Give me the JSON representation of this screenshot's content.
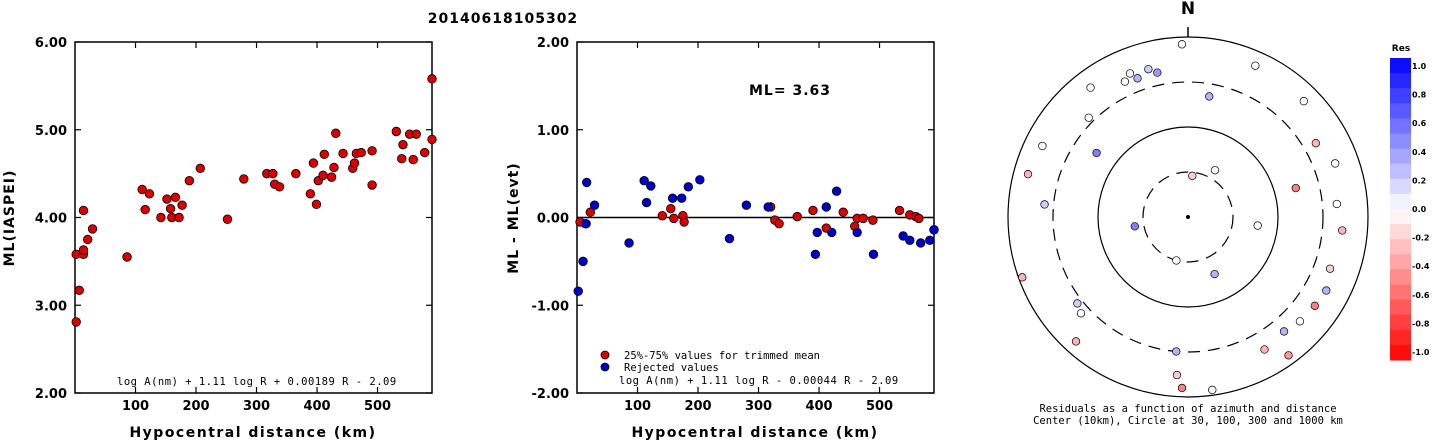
{
  "title": "20140618105302",
  "chart_data": [
    {
      "type": "scatter",
      "ylabel": "ML(IASPEI)",
      "xlabel": "Hypocentral distance (km)",
      "xlim": [
        0,
        590
      ],
      "ylim": [
        2.0,
        6.0
      ],
      "xticks": [
        "100",
        "200",
        "300",
        "400",
        "500"
      ],
      "xtick_values": [
        100,
        200,
        300,
        400,
        500
      ],
      "yticks": [
        "2.00",
        "3.00",
        "4.00",
        "5.00",
        "6.00"
      ],
      "ytick_values": [
        2,
        3,
        4,
        5,
        6
      ],
      "formula": "log A(nm) + 1.11 log R + 0.00189 R - 2.09",
      "series": [
        {
          "color": "#dd0000",
          "points": [
            [
              2,
              2.81
            ],
            [
              2,
              3.58
            ],
            [
              7,
              3.17
            ],
            [
              14,
              3.58
            ],
            [
              14,
              3.63
            ],
            [
              14,
              4.08
            ],
            [
              21,
              3.75
            ],
            [
              29,
              3.87
            ],
            [
              86,
              3.55
            ],
            [
              111,
              4.32
            ],
            [
              116,
              4.09
            ],
            [
              123,
              4.27
            ],
            [
              142,
              4.0
            ],
            [
              152,
              4.21
            ],
            [
              158,
              4.1
            ],
            [
              160,
              4.0
            ],
            [
              166,
              4.23
            ],
            [
              172,
              4.0
            ],
            [
              177,
              4.14
            ],
            [
              189,
              4.42
            ],
            [
              207,
              4.56
            ],
            [
              252,
              3.98
            ],
            [
              279,
              4.44
            ],
            [
              317,
              4.5
            ],
            [
              327,
              4.5
            ],
            [
              330,
              4.38
            ],
            [
              338,
              4.35
            ],
            [
              365,
              4.5
            ],
            [
              389,
              4.27
            ],
            [
              394,
              4.62
            ],
            [
              399,
              4.15
            ],
            [
              402,
              4.42
            ],
            [
              410,
              4.48
            ],
            [
              412,
              4.72
            ],
            [
              424,
              4.46
            ],
            [
              428,
              4.57
            ],
            [
              431,
              4.96
            ],
            [
              443,
              4.73
            ],
            [
              459,
              4.56
            ],
            [
              462,
              4.62
            ],
            [
              465,
              4.73
            ],
            [
              473,
              4.74
            ],
            [
              491,
              4.37
            ],
            [
              491,
              4.76
            ],
            [
              531,
              4.98
            ],
            [
              540,
              4.67
            ],
            [
              542,
              4.83
            ],
            [
              553,
              4.95
            ],
            [
              559,
              4.66
            ],
            [
              564,
              4.95
            ],
            [
              578,
              4.74
            ],
            [
              591,
              4.89
            ],
            [
              595,
              5.58
            ]
          ]
        }
      ]
    },
    {
      "type": "scatter",
      "ylabel": "ML - ML(evt)",
      "xlabel": "Hypocentral distance (km)",
      "xlim": [
        0,
        590
      ],
      "ylim": [
        -2.0,
        2.0
      ],
      "xticks": [
        "100",
        "200",
        "300",
        "400",
        "500"
      ],
      "xtick_values": [
        100,
        200,
        300,
        400,
        500
      ],
      "yticks": [
        "-2.00",
        "-1.00",
        "0.00",
        "1.00",
        "2.00"
      ],
      "ytick_values": [
        -2,
        -1,
        0,
        1,
        2
      ],
      "annotation": "ML= 3.63",
      "formula": "log A(nm) + 1.11 log R - 0.00044 R - 2.09",
      "legend": [
        "25%-75% values for trimmed mean",
        "Rejected values"
      ],
      "series": [
        {
          "name": "25%-75% values for trimmed mean",
          "color": "#dd0000",
          "points": [
            [
              5,
              -0.05
            ],
            [
              15,
              -0.07
            ],
            [
              22,
              0.06
            ],
            [
              141,
              0.02
            ],
            [
              155,
              0.1
            ],
            [
              160,
              -0.01
            ],
            [
              175,
              0.02
            ],
            [
              177,
              -0.05
            ],
            [
              320,
              0.12
            ],
            [
              327,
              -0.03
            ],
            [
              334,
              -0.07
            ],
            [
              364,
              0.01
            ],
            [
              390,
              0.08
            ],
            [
              412,
              -0.12
            ],
            [
              440,
              0.06
            ],
            [
              459,
              -0.1
            ],
            [
              463,
              -0.01
            ],
            [
              473,
              -0.01
            ],
            [
              489,
              -0.03
            ],
            [
              533,
              0.08
            ],
            [
              550,
              0.03
            ],
            [
              560,
              0.01
            ],
            [
              565,
              -0.01
            ],
            [
              592,
              -0.14
            ]
          ]
        },
        {
          "name": "Rejected values",
          "color": "#0000cc",
          "points": [
            [
              2,
              -0.84
            ],
            [
              10,
              -0.5
            ],
            [
              14,
              -0.07
            ],
            [
              16,
              0.4
            ],
            [
              29,
              0.14
            ],
            [
              86,
              -0.29
            ],
            [
              111,
              0.42
            ],
            [
              115,
              0.17
            ],
            [
              122,
              0.36
            ],
            [
              158,
              0.22
            ],
            [
              173,
              0.22
            ],
            [
              184,
              0.35
            ],
            [
              203,
              0.43
            ],
            [
              252,
              -0.24
            ],
            [
              280,
              0.14
            ],
            [
              316,
              0.12
            ],
            [
              394,
              -0.42
            ],
            [
              397,
              -0.17
            ],
            [
              412,
              0.12
            ],
            [
              421,
              -0.17
            ],
            [
              429,
              0.3
            ],
            [
              463,
              -0.17
            ],
            [
              490,
              -0.42
            ],
            [
              539,
              -0.21
            ],
            [
              550,
              -0.26
            ],
            [
              568,
              -0.29
            ],
            [
              583,
              -0.26
            ],
            [
              593,
              -0.14
            ]
          ]
        }
      ]
    },
    {
      "type": "scatter",
      "subtype": "polar",
      "north_label": "N",
      "caption_line1": "Residuals as a function of azimuth and distance",
      "caption_line2": "Center (10km), Circle at 30, 100, 300 and 1000 km",
      "colorbar_title": "Res",
      "colorbar_labels": [
        "1.0",
        "0.8",
        "0.6",
        "0.4",
        "0.2",
        "0.0",
        "-0.2",
        "-0.4",
        "-0.6",
        "-0.8",
        "-1.0"
      ],
      "stations": [
        {
          "azimuth": 30,
          "ring": 0.3,
          "residual": 0.0
        },
        {
          "azimuth": 155,
          "ring": 0.35,
          "residual": 0.3
        },
        {
          "azimuth": 195,
          "ring": 0.25,
          "residual": 0.0
        },
        {
          "azimuth": 185,
          "ring": 0.75,
          "residual": 0.3
        },
        {
          "azimuth": 260,
          "ring": 0.3,
          "residual": 0.5
        },
        {
          "azimuth": 97,
          "ring": 0.39,
          "residual": 0.0
        },
        {
          "azimuth": 6,
          "ring": 0.23,
          "residual": -0.2
        },
        {
          "azimuth": 75,
          "ring": 0.62,
          "residual": -0.5
        },
        {
          "azimuth": 45,
          "ring": 0.91,
          "residual": 0.0
        },
        {
          "azimuth": 60,
          "ring": 0.82,
          "residual": -0.3
        },
        {
          "azimuth": 70,
          "ring": 0.87,
          "residual": 0.0
        },
        {
          "azimuth": 85,
          "ring": 0.83,
          "residual": 0.0
        },
        {
          "azimuth": 95,
          "ring": 0.86,
          "residual": -0.3
        },
        {
          "azimuth": 110,
          "ring": 0.84,
          "residual": -0.2
        },
        {
          "azimuth": 118,
          "ring": 0.87,
          "residual": 0.3
        },
        {
          "azimuth": 125,
          "ring": 0.86,
          "residual": -0.5
        },
        {
          "azimuth": 358,
          "ring": 0.96,
          "residual": 0.0
        },
        {
          "azimuth": 10,
          "ring": 0.68,
          "residual": 0.3
        },
        {
          "azimuth": 24,
          "ring": 0.92,
          "residual": 0.0
        },
        {
          "azimuth": 323,
          "ring": 0.9,
          "residual": 0.0
        },
        {
          "azimuth": 305,
          "ring": 0.62,
          "residual": 0.5
        },
        {
          "azimuth": 296,
          "ring": 0.9,
          "residual": 0.0
        },
        {
          "azimuth": 285,
          "ring": 0.92,
          "residual": -0.3
        },
        {
          "azimuth": 275,
          "ring": 0.8,
          "residual": 0.2
        },
        {
          "azimuth": 340,
          "ring": 0.82,
          "residual": 0.3
        },
        {
          "azimuth": 335,
          "ring": 0.83,
          "residual": 0.0
        },
        {
          "azimuth": 338,
          "ring": 0.86,
          "residual": 0.0
        },
        {
          "azimuth": 345,
          "ring": 0.85,
          "residual": 0.2
        },
        {
          "azimuth": 348,
          "ring": 0.82,
          "residual": 0.4
        },
        {
          "azimuth": 250,
          "ring": 0.98,
          "residual": -0.3
        },
        {
          "azimuth": 228,
          "ring": 0.8,
          "residual": 0.0
        },
        {
          "azimuth": 232,
          "ring": 0.78,
          "residual": 0.2
        },
        {
          "azimuth": 222,
          "ring": 0.93,
          "residual": -0.3
        },
        {
          "azimuth": 182,
          "ring": 0.95,
          "residual": -0.5
        },
        {
          "azimuth": 184,
          "ring": 0.88,
          "residual": -0.2
        },
        {
          "azimuth": 172,
          "ring": 0.97,
          "residual": 0.0
        },
        {
          "azimuth": 150,
          "ring": 0.85,
          "residual": -0.3
        },
        {
          "azimuth": 144,
          "ring": 0.95,
          "residual": -0.4
        },
        {
          "azimuth": 133,
          "ring": 0.85,
          "residual": 0.0
        },
        {
          "azimuth": 140,
          "ring": 0.83,
          "residual": 0.3
        },
        {
          "azimuth": 315,
          "ring": 0.78,
          "residual": 0.0
        }
      ]
    }
  ]
}
